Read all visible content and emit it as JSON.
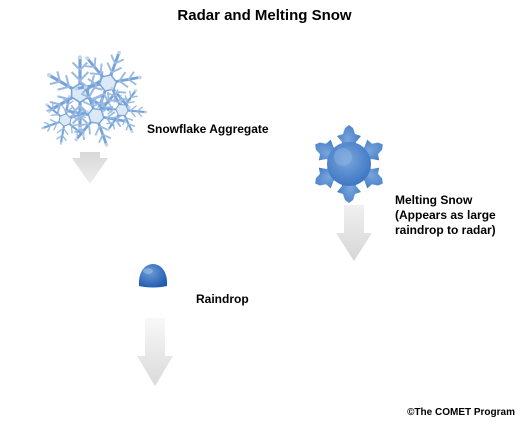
{
  "title": "Radar and Melting Snow",
  "labels": {
    "snowflake": "Snowflake Aggregate",
    "melting_line1": "Melting Snow",
    "melting_line2": "(Appears as large",
    "melting_line3": "raindrop to radar)",
    "raindrop": "Raindrop"
  },
  "credit": "©The COMET Program",
  "colors": {
    "snow_blue": "#5b8fd0",
    "snow_light": "#cfe0f3",
    "arrow_gray": "#e6e6e6",
    "drop_blue": "#2f6fc2"
  }
}
